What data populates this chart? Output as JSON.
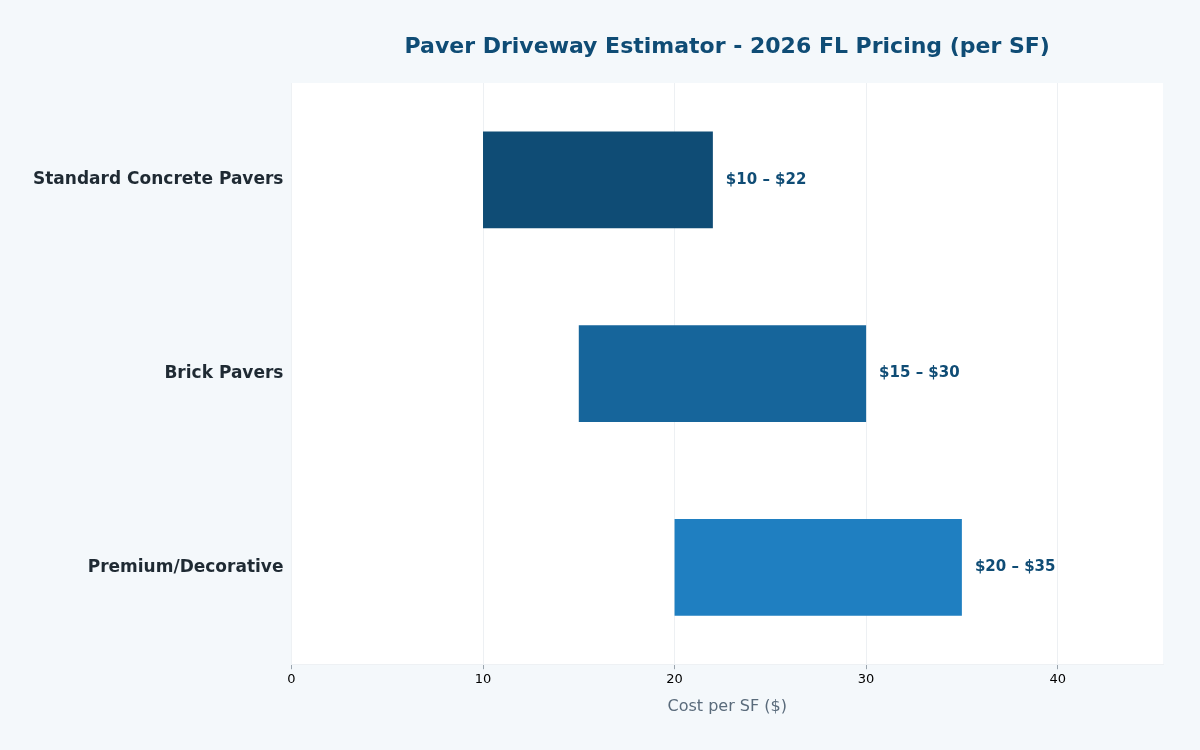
{
  "chart_data": {
    "type": "bar",
    "orientation": "horizontal",
    "title": "Paver Driveway Estimator - 2026 FL Pricing (per SF)",
    "xlabel": "Cost per SF ($)",
    "categories": [
      "Standard Concrete Pavers",
      "Brick Pavers",
      "Premium/Decorative"
    ],
    "base": [
      10,
      15,
      20
    ],
    "values": [
      12,
      15,
      15
    ],
    "colors": [
      "#0f4c75",
      "#16659b",
      "#1f7fc1"
    ],
    "annotations": [
      {
        "text": "$10 – $22",
        "x": 22,
        "y": "Standard Concrete Pavers"
      },
      {
        "text": "$15 – $30",
        "x": 30,
        "y": "Brick Pavers"
      },
      {
        "text": "$20 – $35",
        "x": 35,
        "y": "Premium/Decorative"
      }
    ],
    "xlim": [
      0,
      45.5
    ],
    "xticks": [
      0,
      10,
      20,
      30,
      40
    ],
    "grid": "x",
    "legend": false
  }
}
